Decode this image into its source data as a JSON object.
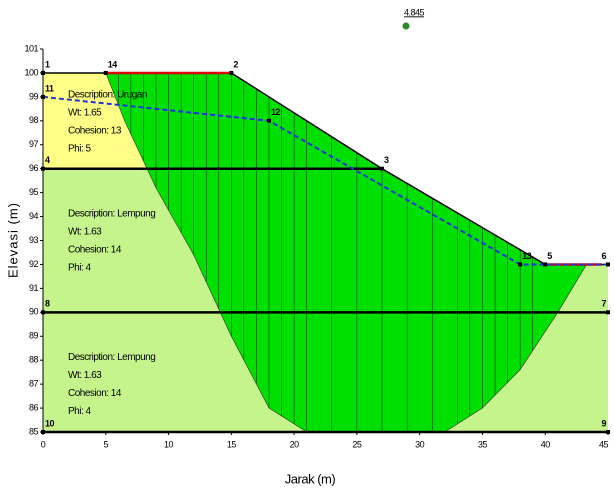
{
  "chart_data": {
    "type": "slope",
    "x_label": "Jarak (m)",
    "y_label": "Elevasi (m)",
    "xlim": [
      0,
      45
    ],
    "ylim": [
      85,
      101
    ],
    "xticks": [
      0,
      5,
      10,
      15,
      20,
      25,
      30,
      35,
      40,
      45
    ],
    "yticks": [
      85,
      86,
      87,
      88,
      89,
      90,
      91,
      92,
      93,
      94,
      95,
      96,
      97,
      98,
      99,
      100,
      101
    ],
    "factor_of_safety": 4.845,
    "materials": [
      {
        "color": "#ffff88",
        "x": [
          0,
          15,
          27,
          0
        ],
        "y": [
          100,
          100,
          96,
          96
        ],
        "text": [
          "Description: Urugan",
          "Wt: 1.65",
          "Cohesion: 13",
          "Phi: 5"
        ]
      },
      {
        "color": "#c6f48c",
        "x": [
          0,
          27,
          40,
          45,
          45,
          0
        ],
        "y": [
          96,
          96,
          92,
          92,
          90,
          90
        ],
        "text": [
          "Description: Lempung",
          "Wt: 1.63",
          "Cohesion: 14",
          "Phi: 4"
        ]
      },
      {
        "color": "#c6f48c",
        "x": [
          0,
          45,
          45,
          0
        ],
        "y": [
          90,
          90,
          85,
          85
        ],
        "text": [
          "Description: Lempung",
          "Wt: 1.63",
          "Cohesion: 14",
          "Phi: 4"
        ]
      }
    ],
    "slip_color": "#00e000",
    "slip_x": [
      5,
      15,
      27,
      40,
      43.3,
      41,
      38,
      35,
      32,
      21,
      18,
      15,
      12,
      9,
      6.5,
      5
    ],
    "slip_y": [
      100,
      100,
      96,
      92,
      92,
      90,
      87.6,
      86,
      85,
      85,
      86,
      89,
      92.4,
      95.2,
      98,
      100
    ],
    "ground_x": [
      0,
      15,
      27,
      40,
      45
    ],
    "ground_y": [
      100,
      100,
      96,
      92,
      92
    ],
    "slice_x": [
      6,
      7,
      8,
      9,
      10,
      11,
      12,
      13,
      14,
      15,
      16,
      17,
      18,
      19,
      20,
      21,
      23,
      25,
      27,
      29,
      31,
      33,
      34,
      35,
      36,
      37,
      38,
      39,
      40,
      41,
      42
    ],
    "boundaries": [
      {
        "x": [
          0,
          27
        ],
        "y": [
          96,
          96
        ]
      },
      {
        "x": [
          0,
          45
        ],
        "y": [
          90,
          90
        ]
      },
      {
        "x": [
          0,
          45
        ],
        "y": [
          85,
          85
        ]
      }
    ],
    "water_color": "#2233dd",
    "water_x": [
      0,
      18,
      38,
      45
    ],
    "water_y": [
      99,
      98,
      92,
      92
    ],
    "loads": [
      {
        "x": [
          5,
          15
        ],
        "y": [
          100,
          100
        ]
      },
      {
        "x": [
          40,
          44.5
        ],
        "y": [
          92,
          92
        ]
      }
    ],
    "points": [
      {
        "label": "1",
        "x": 0,
        "y": 100
      },
      {
        "label": "14",
        "x": 5,
        "y": 100
      },
      {
        "label": "2",
        "x": 15,
        "y": 100
      },
      {
        "label": "3",
        "x": 27,
        "y": 96
      },
      {
        "label": "4",
        "x": 0,
        "y": 96
      },
      {
        "label": "5",
        "x": 40,
        "y": 92
      },
      {
        "label": "6",
        "x": 45,
        "y": 92
      },
      {
        "label": "7",
        "x": 45,
        "y": 90
      },
      {
        "label": "8",
        "x": 0,
        "y": 90
      },
      {
        "label": "9",
        "x": 45,
        "y": 85
      },
      {
        "label": "10",
        "x": 0,
        "y": 85
      },
      {
        "label": "11",
        "x": 0,
        "y": 99
      },
      {
        "label": "12",
        "x": 18,
        "y": 98
      },
      {
        "label": "13",
        "x": 38,
        "y": 92
      }
    ]
  }
}
